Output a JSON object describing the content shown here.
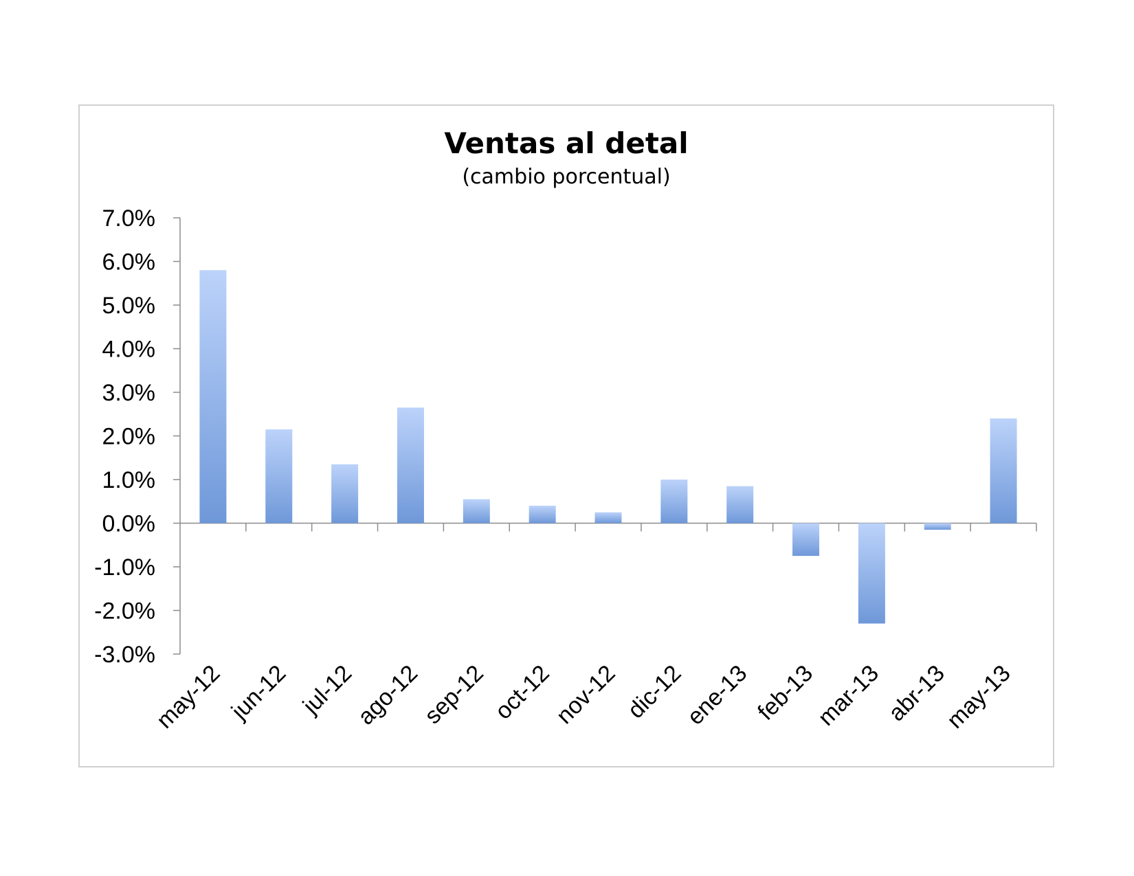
{
  "chart_data": {
    "type": "bar",
    "title": "Ventas al detal",
    "subtitle": "(cambio porcentual)",
    "categories": [
      "may-12",
      "jun-12",
      "jul-12",
      "ago-12",
      "sep-12",
      "oct-12",
      "nov-12",
      "dic-12",
      "ene-13",
      "feb-13",
      "mar-13",
      "abr-13",
      "may-13"
    ],
    "values": [
      5.8,
      2.15,
      1.35,
      2.65,
      0.55,
      0.4,
      0.25,
      1.0,
      0.85,
      -0.75,
      -2.3,
      -0.15,
      2.4
    ],
    "ylim": [
      -3.0,
      7.0
    ],
    "yticks": [
      "7.0%",
      "6.0%",
      "5.0%",
      "4.0%",
      "3.0%",
      "2.0%",
      "1.0%",
      "0.0%",
      "-1.0%",
      "-2.0%",
      "-3.0%"
    ],
    "xlabel": "",
    "ylabel": "",
    "grid": false,
    "bar_color_light": "#bcd3fa",
    "bar_color_dark": "#6f98d9"
  }
}
